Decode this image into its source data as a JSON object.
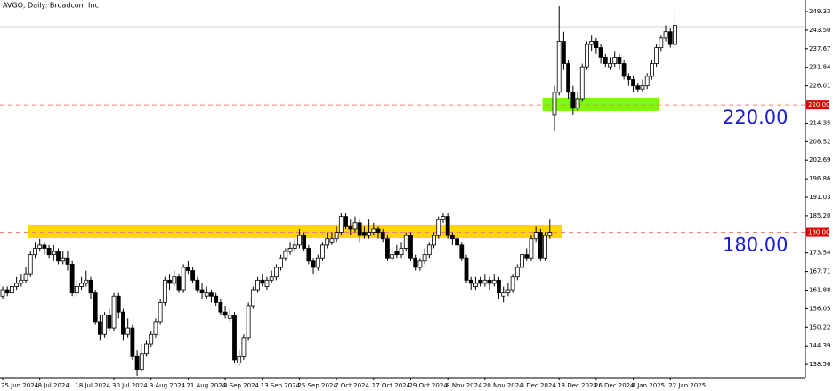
{
  "chart_data": {
    "type": "candlestick",
    "title": "AVGO, Daily:  Broadcom Inc",
    "categories": [
      "25 Jun 2024",
      null,
      null,
      null,
      null,
      null,
      null,
      null,
      "8 Jul 2024",
      null,
      null,
      null,
      null,
      null,
      null,
      null,
      "18 Jul 2024",
      null,
      null,
      null,
      null,
      null,
      null,
      null,
      "30 Jul 2024",
      null,
      null,
      null,
      null,
      null,
      null,
      null,
      "9 Aug 2024",
      null,
      null,
      null,
      null,
      null,
      null,
      null,
      "21 Aug 2024",
      null,
      null,
      null,
      null,
      null,
      null,
      null,
      "3 Sep 2024",
      null,
      null,
      null,
      null,
      null,
      null,
      null,
      "13 Sep 2024",
      null,
      null,
      null,
      null,
      null,
      null,
      null,
      "25 Sep 2024",
      null,
      null,
      null,
      null,
      null,
      null,
      null,
      "7 Oct 2024",
      null,
      null,
      null,
      null,
      null,
      null,
      null,
      "17 Oct 2024",
      null,
      null,
      null,
      null,
      null,
      null,
      null,
      "29 Oct 2024",
      null,
      null,
      null,
      null,
      null,
      null,
      null,
      "8 Nov 2024",
      null,
      null,
      null,
      null,
      null,
      null,
      null,
      "20 Nov 2024",
      null,
      null,
      null,
      null,
      null,
      null,
      null,
      "3 Dec 2024",
      null,
      null,
      null,
      null,
      null,
      null,
      null,
      "13 Dec 2024",
      null,
      null,
      null,
      null,
      null,
      null,
      null,
      "26 Dec 2024",
      null,
      null,
      null,
      null,
      null,
      null,
      null,
      "8 Jan 2025",
      null,
      null,
      null,
      null,
      null,
      null,
      null,
      "22 Jan 2025",
      null
    ],
    "open": [
      160,
      162,
      161,
      163,
      164,
      165,
      167,
      173,
      175,
      176,
      175,
      173,
      174,
      171,
      172,
      170,
      161,
      163,
      164,
      165,
      161,
      152,
      148,
      154,
      150,
      160,
      155,
      148,
      150,
      141,
      137,
      142,
      145,
      148,
      152,
      158,
      165,
      164,
      166,
      162,
      169,
      168,
      165,
      162,
      160,
      161,
      160,
      158,
      155,
      153,
      154,
      139,
      141,
      147,
      157,
      162,
      165,
      163,
      165,
      166,
      169,
      172,
      174,
      175,
      176,
      179,
      175,
      171,
      169,
      172,
      176,
      177,
      178,
      180,
      185,
      182,
      181,
      183,
      180,
      179,
      180,
      181,
      180,
      178,
      172,
      174,
      173,
      175,
      179,
      172,
      169,
      171,
      173,
      176,
      179,
      184,
      185,
      179,
      178,
      176,
      172,
      165,
      163,
      165,
      164,
      165,
      164,
      165,
      160,
      161,
      162,
      166,
      169,
      173,
      172,
      178,
      180,
      172,
      179,
      217,
      224,
      240,
      233,
      224,
      219,
      222,
      232,
      239,
      240,
      238,
      235,
      232,
      233,
      235,
      233,
      229,
      228,
      226,
      225,
      226,
      229,
      233,
      238,
      241,
      243,
      239
    ],
    "high": [
      163,
      163,
      164,
      166,
      167,
      169,
      174,
      177,
      178,
      177,
      176,
      176,
      175,
      174,
      174,
      171,
      165,
      166,
      168,
      166,
      162,
      154,
      155,
      156,
      161,
      161,
      156,
      153,
      151,
      143,
      145,
      146,
      149,
      153,
      159,
      166,
      167,
      168,
      167,
      170,
      171,
      169,
      166,
      164,
      163,
      162,
      161,
      159,
      157,
      156,
      155,
      143,
      148,
      158,
      163,
      166,
      167,
      166,
      168,
      170,
      173,
      175,
      177,
      178,
      181,
      180,
      176,
      172,
      173,
      177,
      180,
      180,
      182,
      186,
      186,
      184,
      185,
      184,
      182,
      184,
      183,
      182,
      181,
      179,
      175,
      176,
      177,
      180,
      180,
      173,
      172,
      175,
      177,
      180,
      185,
      186,
      186,
      180,
      179,
      177,
      173,
      166,
      166,
      166,
      167,
      166,
      167,
      166,
      163,
      164,
      167,
      170,
      174,
      175,
      179,
      182,
      181,
      180,
      184,
      226,
      251,
      243,
      234,
      226,
      224,
      233,
      240,
      242,
      241,
      239,
      236,
      235,
      237,
      236,
      234,
      230,
      229,
      227,
      228,
      230,
      234,
      239,
      242,
      245,
      244,
      249
    ],
    "low": [
      159,
      160,
      160,
      162,
      163,
      164,
      166,
      172,
      174,
      173,
      172,
      171,
      170,
      170,
      168,
      160,
      160,
      162,
      163,
      159,
      151,
      146,
      147,
      149,
      149,
      153,
      146,
      147,
      140,
      135,
      136,
      141,
      144,
      147,
      151,
      157,
      162,
      163,
      161,
      161,
      167,
      164,
      161,
      159,
      159,
      158,
      157,
      154,
      153,
      152,
      139,
      138,
      140,
      146,
      156,
      161,
      163,
      162,
      164,
      165,
      168,
      171,
      173,
      174,
      175,
      174,
      170,
      167,
      168,
      171,
      175,
      176,
      177,
      179,
      181,
      179,
      180,
      177,
      178,
      178,
      179,
      178,
      177,
      171,
      171,
      172,
      172,
      174,
      171,
      168,
      168,
      170,
      172,
      175,
      178,
      183,
      178,
      176,
      175,
      171,
      164,
      162,
      162,
      163,
      163,
      162,
      163,
      159,
      158,
      160,
      161,
      165,
      168,
      171,
      171,
      177,
      171,
      171,
      178,
      212,
      223,
      231,
      222,
      217,
      218,
      221,
      231,
      237,
      236,
      233,
      232,
      231,
      232,
      231,
      228,
      226,
      224,
      224,
      224,
      225,
      228,
      232,
      237,
      240,
      238,
      238
    ],
    "close": [
      162,
      161,
      163,
      164,
      165,
      167,
      173,
      175,
      176,
      175,
      173,
      174,
      171,
      172,
      170,
      161,
      163,
      164,
      165,
      161,
      152,
      148,
      154,
      150,
      160,
      155,
      148,
      150,
      141,
      137,
      142,
      145,
      148,
      152,
      158,
      165,
      164,
      166,
      162,
      169,
      168,
      165,
      162,
      161,
      161,
      160,
      158,
      155,
      154,
      154,
      140,
      141,
      147,
      157,
      162,
      165,
      164,
      165,
      166,
      169,
      172,
      174,
      175,
      176,
      179,
      175,
      171,
      169,
      172,
      176,
      178,
      178,
      180,
      185,
      182,
      181,
      183,
      179,
      179,
      180,
      181,
      180,
      178,
      172,
      173,
      173,
      175,
      179,
      172,
      169,
      171,
      173,
      176,
      179,
      184,
      185,
      179,
      178,
      176,
      172,
      165,
      164,
      164,
      164,
      165,
      164,
      165,
      161,
      161,
      162,
      166,
      169,
      173,
      172,
      178,
      180,
      172,
      179,
      180,
      224,
      240,
      233,
      224,
      219,
      222,
      232,
      239,
      240,
      238,
      235,
      233,
      233,
      235,
      233,
      229,
      228,
      226,
      225,
      226,
      229,
      233,
      238,
      241,
      243,
      239,
      245
    ],
    "up_color": "#ffffff",
    "down_color": "#000000",
    "ylim": [
      134.4,
      252.96
    ],
    "yticks": [
      249.33,
      {
        "value": 243.5,
        "label": "243.50"
      },
      237.67,
      231.84,
      226.01,
      214.35,
      208.52,
      202.69,
      196.86,
      191.03,
      {
        "value": 185.2,
        "label": "185.20"
      },
      173.54,
      167.71,
      161.88,
      156.05,
      150.22,
      144.39,
      138.56
    ],
    "levels": [
      {
        "value": 220,
        "label": "220.00",
        "color": "#f08080"
      },
      {
        "value": 180,
        "label": "180.00",
        "color": "#f08080"
      }
    ],
    "annotation_color": "#1c1cd8",
    "zones": [
      {
        "from": 218.1,
        "to": 222.3,
        "start": 117,
        "end": 141,
        "color": "#7cfc00"
      },
      {
        "from": 178.2,
        "to": 182.4,
        "start": 6,
        "end": 120,
        "color": "#ffd700"
      }
    ],
    "bid": 244.6
  }
}
